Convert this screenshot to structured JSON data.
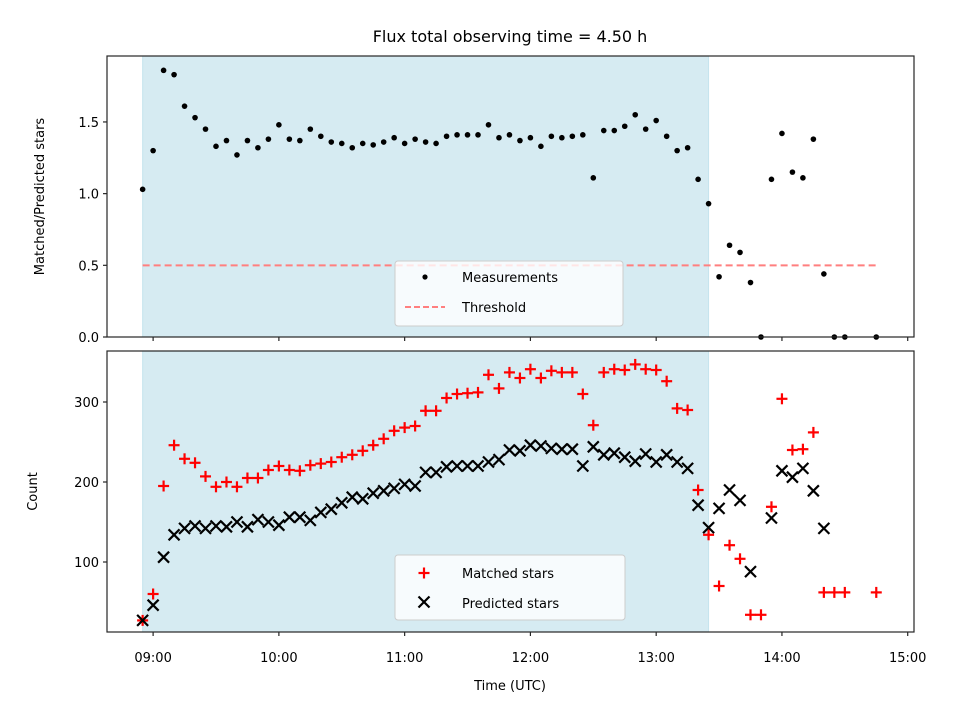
{
  "chart_data": [
    {
      "type": "scatter",
      "title": "Flux total observing time = 4.50 h",
      "xlabel": "",
      "ylabel": "Matched/Predicted stars",
      "ylim": [
        0.0,
        1.96
      ],
      "xlim": [
        "08:38",
        "15:03"
      ],
      "yticks": [
        0.0,
        0.5,
        1.0,
        1.5
      ],
      "ytick_labels": [
        "0.0",
        "0.5",
        "1.0",
        "1.5"
      ],
      "xticks": [
        "09:00",
        "10:00",
        "11:00",
        "12:00",
        "13:00",
        "14:00",
        "15:00"
      ],
      "grid": false,
      "shaded_interval": {
        "start": "08:55",
        "end": "13:25",
        "color": "#add8e6"
      },
      "legend": {
        "placement": "lower-center",
        "entries": [
          "Measurements",
          "Threshold"
        ]
      },
      "threshold": {
        "name": "Threshold",
        "value": 0.5,
        "start": "08:55",
        "end": "14:45",
        "color": "#ff7f7f",
        "style": "dashed"
      },
      "series": [
        {
          "name": "Measurements",
          "color": "#000000",
          "marker": "dot",
          "points": [
            [
              "08:55",
              1.03
            ],
            [
              "09:00",
              1.3
            ],
            [
              "09:05",
              1.86
            ],
            [
              "09:10",
              1.83
            ],
            [
              "09:15",
              1.61
            ],
            [
              "09:20",
              1.53
            ],
            [
              "09:25",
              1.45
            ],
            [
              "09:30",
              1.33
            ],
            [
              "09:35",
              1.37
            ],
            [
              "09:40",
              1.27
            ],
            [
              "09:45",
              1.37
            ],
            [
              "09:50",
              1.32
            ],
            [
              "09:55",
              1.38
            ],
            [
              "10:00",
              1.48
            ],
            [
              "10:05",
              1.38
            ],
            [
              "10:10",
              1.37
            ],
            [
              "10:15",
              1.45
            ],
            [
              "10:20",
              1.4
            ],
            [
              "10:25",
              1.36
            ],
            [
              "10:30",
              1.35
            ],
            [
              "10:35",
              1.32
            ],
            [
              "10:40",
              1.35
            ],
            [
              "10:45",
              1.34
            ],
            [
              "10:50",
              1.36
            ],
            [
              "10:55",
              1.39
            ],
            [
              "11:00",
              1.35
            ],
            [
              "11:05",
              1.38
            ],
            [
              "11:10",
              1.36
            ],
            [
              "11:15",
              1.35
            ],
            [
              "11:20",
              1.4
            ],
            [
              "11:25",
              1.41
            ],
            [
              "11:30",
              1.41
            ],
            [
              "11:35",
              1.41
            ],
            [
              "11:40",
              1.48
            ],
            [
              "11:45",
              1.39
            ],
            [
              "11:50",
              1.41
            ],
            [
              "11:55",
              1.37
            ],
            [
              "12:00",
              1.39
            ],
            [
              "12:05",
              1.33
            ],
            [
              "12:10",
              1.4
            ],
            [
              "12:15",
              1.39
            ],
            [
              "12:20",
              1.4
            ],
            [
              "12:25",
              1.41
            ],
            [
              "12:30",
              1.11
            ],
            [
              "12:35",
              1.44
            ],
            [
              "12:40",
              1.44
            ],
            [
              "12:45",
              1.47
            ],
            [
              "12:50",
              1.55
            ],
            [
              "12:55",
              1.45
            ],
            [
              "13:00",
              1.51
            ],
            [
              "13:05",
              1.4
            ],
            [
              "13:10",
              1.3
            ],
            [
              "13:15",
              1.32
            ],
            [
              "13:20",
              1.1
            ],
            [
              "13:25",
              0.93
            ],
            [
              "13:30",
              0.42
            ],
            [
              "13:35",
              0.64
            ],
            [
              "13:40",
              0.59
            ],
            [
              "13:45",
              0.38
            ],
            [
              "13:50",
              0.0
            ],
            [
              "13:55",
              1.1
            ],
            [
              "14:00",
              1.42
            ],
            [
              "14:05",
              1.15
            ],
            [
              "14:10",
              1.11
            ],
            [
              "14:15",
              1.38
            ],
            [
              "14:20",
              0.44
            ],
            [
              "14:25",
              0.0
            ],
            [
              "14:30",
              0.0
            ],
            [
              "14:45",
              0.0
            ]
          ]
        }
      ]
    },
    {
      "type": "scatter",
      "title": "",
      "xlabel": "Time (UTC)",
      "ylabel": "Count",
      "ylim": [
        12.5,
        363.75
      ],
      "xlim": [
        "08:38",
        "15:03"
      ],
      "yticks": [
        100,
        200,
        300
      ],
      "ytick_labels": [
        "100",
        "200",
        "300"
      ],
      "xticks": [
        "09:00",
        "10:00",
        "11:00",
        "12:00",
        "13:00",
        "14:00",
        "15:00"
      ],
      "xtick_labels": [
        "09:00",
        "10:00",
        "11:00",
        "12:00",
        "13:00",
        "14:00",
        "15:00"
      ],
      "grid": false,
      "shaded_interval": {
        "start": "08:55",
        "end": "13:25",
        "color": "#add8e6"
      },
      "legend": {
        "placement": "lower-center",
        "entries": [
          "Matched stars",
          "Predicted stars"
        ]
      },
      "series": [
        {
          "name": "Matched stars",
          "color": "#ff0000",
          "marker": "plus",
          "points": [
            [
              "08:55",
              27
            ],
            [
              "09:00",
              60
            ],
            [
              "09:05",
              195
            ],
            [
              "09:10",
              246
            ],
            [
              "09:15",
              229
            ],
            [
              "09:20",
              224
            ],
            [
              "09:25",
              207
            ],
            [
              "09:30",
              194
            ],
            [
              "09:35",
              200
            ],
            [
              "09:40",
              194
            ],
            [
              "09:45",
              205
            ],
            [
              "09:50",
              205
            ],
            [
              "09:55",
              215
            ],
            [
              "10:00",
              220
            ],
            [
              "10:05",
              215
            ],
            [
              "10:10",
              214
            ],
            [
              "10:15",
              221
            ],
            [
              "10:20",
              223
            ],
            [
              "10:25",
              225
            ],
            [
              "10:30",
              231
            ],
            [
              "10:35",
              234
            ],
            [
              "10:40",
              239
            ],
            [
              "10:45",
              246
            ],
            [
              "10:50",
              254
            ],
            [
              "10:55",
              264
            ],
            [
              "11:00",
              268
            ],
            [
              "11:05",
              270
            ],
            [
              "11:10",
              289
            ],
            [
              "11:15",
              289
            ],
            [
              "11:20",
              305
            ],
            [
              "11:25",
              310
            ],
            [
              "11:30",
              311
            ],
            [
              "11:35",
              312
            ],
            [
              "11:40",
              334
            ],
            [
              "11:45",
              317
            ],
            [
              "11:50",
              337
            ],
            [
              "11:55",
              330
            ],
            [
              "12:00",
              341
            ],
            [
              "12:05",
              330
            ],
            [
              "12:10",
              339
            ],
            [
              "12:15",
              337
            ],
            [
              "12:20",
              337
            ],
            [
              "12:25",
              310
            ],
            [
              "12:30",
              271
            ],
            [
              "12:35",
              337
            ],
            [
              "12:40",
              341
            ],
            [
              "12:45",
              340
            ],
            [
              "12:50",
              347
            ],
            [
              "12:55",
              341
            ],
            [
              "13:00",
              340
            ],
            [
              "13:05",
              326
            ],
            [
              "13:10",
              292
            ],
            [
              "13:15",
              290
            ],
            [
              "13:20",
              190
            ],
            [
              "13:25",
              134
            ],
            [
              "13:30",
              70
            ],
            [
              "13:35",
              121
            ],
            [
              "13:40",
              104
            ],
            [
              "13:45",
              34
            ],
            [
              "13:50",
              34
            ],
            [
              "13:55",
              169
            ],
            [
              "14:00",
              304
            ],
            [
              "14:05",
              240
            ],
            [
              "14:10",
              241
            ],
            [
              "14:15",
              262
            ],
            [
              "14:20",
              62
            ],
            [
              "14:25",
              62
            ],
            [
              "14:30",
              62
            ],
            [
              "14:45",
              62
            ]
          ]
        },
        {
          "name": "Predicted stars",
          "color": "#000000",
          "marker": "x",
          "points": [
            [
              "08:55",
              27
            ],
            [
              "09:00",
              46
            ],
            [
              "09:05",
              106
            ],
            [
              "09:10",
              134
            ],
            [
              "09:15",
              142
            ],
            [
              "09:20",
              145
            ],
            [
              "09:25",
              142
            ],
            [
              "09:30",
              145
            ],
            [
              "09:35",
              144
            ],
            [
              "09:40",
              150
            ],
            [
              "09:45",
              144
            ],
            [
              "09:50",
              153
            ],
            [
              "09:55",
              150
            ],
            [
              "10:00",
              146
            ],
            [
              "10:05",
              156
            ],
            [
              "10:10",
              156
            ],
            [
              "10:15",
              152
            ],
            [
              "10:20",
              162
            ],
            [
              "10:25",
              166
            ],
            [
              "10:30",
              174
            ],
            [
              "10:35",
              181
            ],
            [
              "10:40",
              179
            ],
            [
              "10:45",
              186
            ],
            [
              "10:50",
              189
            ],
            [
              "10:55",
              192
            ],
            [
              "11:00",
              197
            ],
            [
              "11:05",
              195
            ],
            [
              "11:10",
              212
            ],
            [
              "11:15",
              212
            ],
            [
              "11:20",
              219
            ],
            [
              "11:25",
              220
            ],
            [
              "11:30",
              220
            ],
            [
              "11:35",
              220
            ],
            [
              "11:40",
              225
            ],
            [
              "11:45",
              228
            ],
            [
              "11:50",
              240
            ],
            [
              "11:55",
              239
            ],
            [
              "12:00",
              246
            ],
            [
              "12:05",
              245
            ],
            [
              "12:10",
              242
            ],
            [
              "12:15",
              241
            ],
            [
              "12:20",
              241
            ],
            [
              "12:25",
              220
            ],
            [
              "12:30",
              244
            ],
            [
              "12:35",
              234
            ],
            [
              "12:40",
              236
            ],
            [
              "12:45",
              231
            ],
            [
              "12:50",
              226
            ],
            [
              "12:55",
              235
            ],
            [
              "13:00",
              225
            ],
            [
              "13:05",
              234
            ],
            [
              "13:10",
              225
            ],
            [
              "13:15",
              217
            ],
            [
              "13:20",
              171
            ],
            [
              "13:25",
              143
            ],
            [
              "13:30",
              167
            ],
            [
              "13:35",
              190
            ],
            [
              "13:40",
              177
            ],
            [
              "13:45",
              88
            ],
            [
              "13:55",
              155
            ],
            [
              "14:00",
              214
            ],
            [
              "14:05",
              206
            ],
            [
              "14:10",
              217
            ],
            [
              "14:15",
              189
            ],
            [
              "14:20",
              142
            ]
          ]
        }
      ]
    }
  ]
}
